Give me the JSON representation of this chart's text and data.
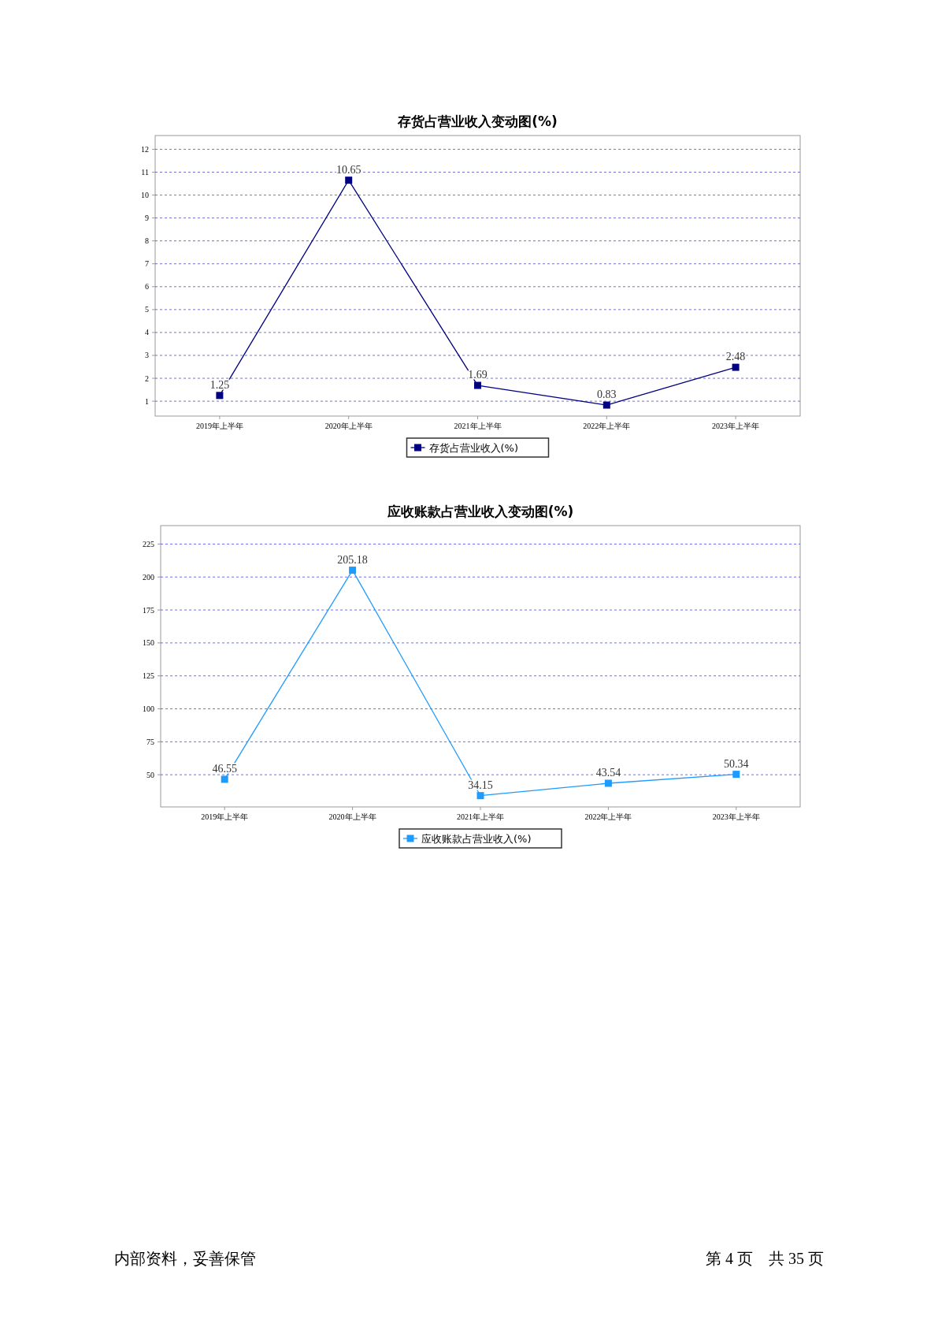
{
  "chart_data": [
    {
      "type": "line",
      "title": "存货占营业收入变动图(%)",
      "categories": [
        "2019年上半年",
        "2020年上半年",
        "2021年上半年",
        "2022年上半年",
        "2023年上半年"
      ],
      "series": [
        {
          "name": "存货占营业收入(%)",
          "color": "#000080",
          "values": [
            1.25,
            10.65,
            1.69,
            0.83,
            2.48
          ]
        }
      ],
      "ylim": [
        0.35,
        12.6
      ],
      "yticks": [
        1,
        2,
        3,
        4,
        5,
        6,
        7,
        8,
        9,
        10,
        11,
        12
      ],
      "grid": "y",
      "legend": "bottom",
      "marker": "square",
      "data_labels": true
    },
    {
      "type": "line",
      "title": "应收账款占营业收入变动图(%)",
      "categories": [
        "2019年上半年",
        "2020年上半年",
        "2021年上半年",
        "2022年上半年",
        "2023年上半年"
      ],
      "series": [
        {
          "name": "应收账款占营业收入(%)",
          "color": "#1e9bff",
          "values": [
            46.55,
            205.18,
            34.15,
            43.54,
            50.34
          ]
        }
      ],
      "ylim": [
        25.6,
        239
      ],
      "yticks": [
        50,
        75,
        100,
        125,
        150,
        175,
        200,
        225
      ],
      "grid": "y",
      "legend": "bottom",
      "marker": "square",
      "data_labels": true,
      "annotations": [
        "内部资料，妥善保管",
        "第 4 页　共 35 页"
      ]
    }
  ]
}
